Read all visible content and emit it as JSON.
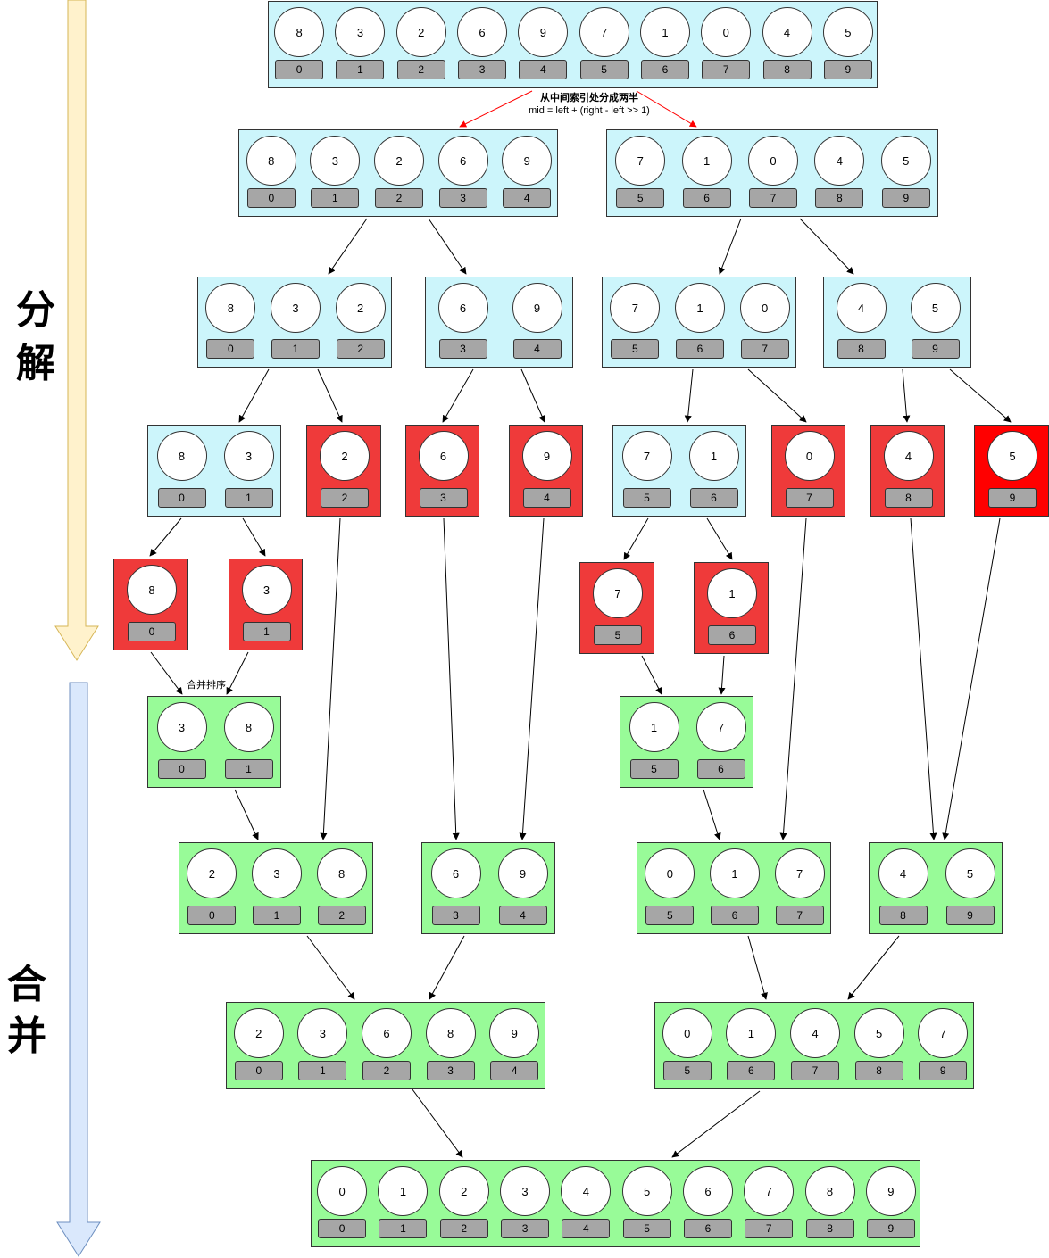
{
  "labels": {
    "decompose": [
      "分",
      "解"
    ],
    "merge": [
      "合",
      "并"
    ],
    "split_note_line1": "从中间索引处分成两半",
    "split_note_line2": "mid = left + (right - left >> 1)",
    "merge_sort_note": "合并排序"
  },
  "colors": {
    "split_box": "#ccf5fb",
    "leaf_box": "#ef3a3a",
    "merge_box": "#98fb98",
    "split_arrow": "#ff0000",
    "down_arrow_split": "#fff2cc",
    "down_arrow_merge": "#dae8fc"
  },
  "arrays": [
    {
      "id": "s0",
      "color": "cyan",
      "values": [
        8,
        3,
        2,
        6,
        9,
        7,
        1,
        0,
        4,
        5
      ],
      "indices": [
        0,
        1,
        2,
        3,
        4,
        5,
        6,
        7,
        8,
        9
      ]
    },
    {
      "id": "s1a",
      "color": "cyan",
      "values": [
        8,
        3,
        2,
        6,
        9
      ],
      "indices": [
        0,
        1,
        2,
        3,
        4
      ]
    },
    {
      "id": "s1b",
      "color": "cyan",
      "values": [
        7,
        1,
        0,
        4,
        5
      ],
      "indices": [
        5,
        6,
        7,
        8,
        9
      ]
    },
    {
      "id": "s2a",
      "color": "cyan",
      "values": [
        8,
        3,
        2
      ],
      "indices": [
        0,
        1,
        2
      ]
    },
    {
      "id": "s2b",
      "color": "cyan",
      "values": [
        6,
        9
      ],
      "indices": [
        3,
        4
      ]
    },
    {
      "id": "s2c",
      "color": "cyan",
      "values": [
        7,
        1,
        0
      ],
      "indices": [
        5,
        6,
        7
      ]
    },
    {
      "id": "s2d",
      "color": "cyan",
      "values": [
        4,
        5
      ],
      "indices": [
        8,
        9
      ]
    },
    {
      "id": "s3a",
      "color": "cyan",
      "values": [
        8,
        3
      ],
      "indices": [
        0,
        1
      ]
    },
    {
      "id": "s3b",
      "color": "red",
      "values": [
        2
      ],
      "indices": [
        2
      ]
    },
    {
      "id": "s3c",
      "color": "red",
      "values": [
        6
      ],
      "indices": [
        3
      ]
    },
    {
      "id": "s3d",
      "color": "red",
      "values": [
        9
      ],
      "indices": [
        4
      ]
    },
    {
      "id": "s3e",
      "color": "cyan",
      "values": [
        7,
        1
      ],
      "indices": [
        5,
        6
      ]
    },
    {
      "id": "s3f",
      "color": "red",
      "values": [
        0
      ],
      "indices": [
        7
      ]
    },
    {
      "id": "s3g",
      "color": "red",
      "values": [
        4
      ],
      "indices": [
        8
      ]
    },
    {
      "id": "s3h",
      "color": "red2",
      "values": [
        5
      ],
      "indices": [
        9
      ]
    },
    {
      "id": "s4a",
      "color": "red",
      "values": [
        8
      ],
      "indices": [
        0
      ]
    },
    {
      "id": "s4b",
      "color": "red",
      "values": [
        3
      ],
      "indices": [
        1
      ]
    },
    {
      "id": "s4c",
      "color": "red",
      "values": [
        7
      ],
      "indices": [
        5
      ]
    },
    {
      "id": "s4d",
      "color": "red",
      "values": [
        1
      ],
      "indices": [
        6
      ]
    },
    {
      "id": "m1a",
      "color": "green",
      "values": [
        3,
        8
      ],
      "indices": [
        0,
        1
      ]
    },
    {
      "id": "m1b",
      "color": "green",
      "values": [
        1,
        7
      ],
      "indices": [
        5,
        6
      ]
    },
    {
      "id": "m2a",
      "color": "green",
      "values": [
        2,
        3,
        8
      ],
      "indices": [
        0,
        1,
        2
      ]
    },
    {
      "id": "m2b",
      "color": "green",
      "values": [
        6,
        9
      ],
      "indices": [
        3,
        4
      ]
    },
    {
      "id": "m2c",
      "color": "green",
      "values": [
        0,
        1,
        7
      ],
      "indices": [
        5,
        6,
        7
      ]
    },
    {
      "id": "m2d",
      "color": "green",
      "values": [
        4,
        5
      ],
      "indices": [
        8,
        9
      ]
    },
    {
      "id": "m3a",
      "color": "green",
      "values": [
        2,
        3,
        6,
        8,
        9
      ],
      "indices": [
        0,
        1,
        2,
        3,
        4
      ]
    },
    {
      "id": "m3b",
      "color": "green",
      "values": [
        0,
        1,
        4,
        5,
        7
      ],
      "indices": [
        5,
        6,
        7,
        8,
        9
      ]
    },
    {
      "id": "m4",
      "color": "green",
      "values": [
        0,
        1,
        2,
        3,
        4,
        5,
        6,
        7,
        8,
        9
      ],
      "indices": [
        0,
        1,
        2,
        3,
        4,
        5,
        6,
        7,
        8,
        9
      ]
    }
  ]
}
